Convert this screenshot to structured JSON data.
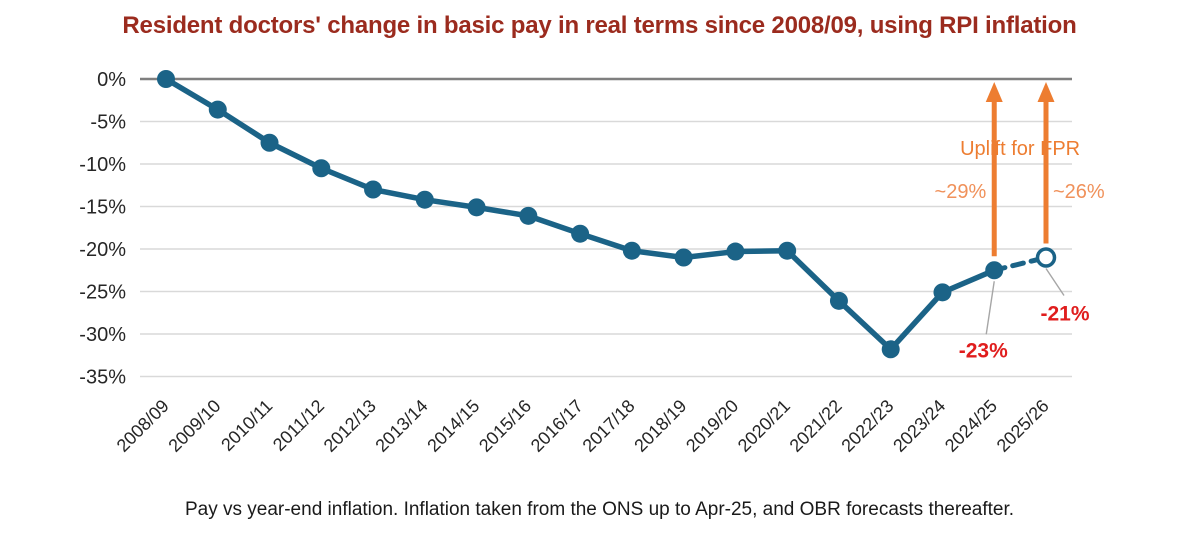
{
  "chart_data": {
    "type": "line",
    "title": "Resident doctors' change in basic pay in real terms since 2008/09, using RPI inflation",
    "caption": "Pay vs year-end inflation. Inflation taken from the ONS up to Apr-25, and OBR forecasts thereafter.",
    "categories": [
      "2008/09",
      "2009/10",
      "2010/11",
      "2011/12",
      "2012/13",
      "2013/14",
      "2014/15",
      "2015/16",
      "2016/17",
      "2017/18",
      "2018/19",
      "2019/20",
      "2020/21",
      "2021/22",
      "2022/23",
      "2023/24",
      "2024/25",
      "2025/26"
    ],
    "values": [
      0,
      -3.6,
      -7.5,
      -10.5,
      -13.0,
      -14.2,
      -15.1,
      -16.1,
      -18.2,
      -20.2,
      -21.0,
      -20.3,
      -20.2,
      -26.1,
      -31.8,
      -25.1,
      -22.5,
      -21.0
    ],
    "ylim": [
      -35,
      0
    ],
    "yticks": {
      "values": [
        0,
        -5,
        -10,
        -15,
        -20,
        -25,
        -30,
        -35
      ],
      "labels": [
        "0%",
        "-5%",
        "-10%",
        "-15%",
        "-20%",
        "-25%",
        "-30%",
        "-35%"
      ]
    },
    "grid": true,
    "legend": "none",
    "forecast": {
      "dashed_from_index": 16,
      "open_marker_index": 17
    },
    "annotations": {
      "uplift_title": "Uplift for FPR",
      "arrows": [
        {
          "index": 16,
          "label": "~29%",
          "label_side": "left"
        },
        {
          "index": 17,
          "label": "~26%",
          "label_side": "right"
        }
      ],
      "point_labels": [
        {
          "index": 16,
          "label": "-23%"
        },
        {
          "index": 17,
          "label": "-21%"
        }
      ]
    }
  },
  "colors": {
    "title": "#9B2B1E",
    "line": "#1B6387",
    "marker": "#1B6387",
    "open_marker_fill": "#FFFFFF",
    "orange": "#ED7D31",
    "orange_light": "#F0915A",
    "red_label": "#E01D1D",
    "gridline": "#D9D9D9",
    "zero_line": "#7F7F7F",
    "axis_text": "#262626",
    "leader_line": "#A6A6A6"
  }
}
